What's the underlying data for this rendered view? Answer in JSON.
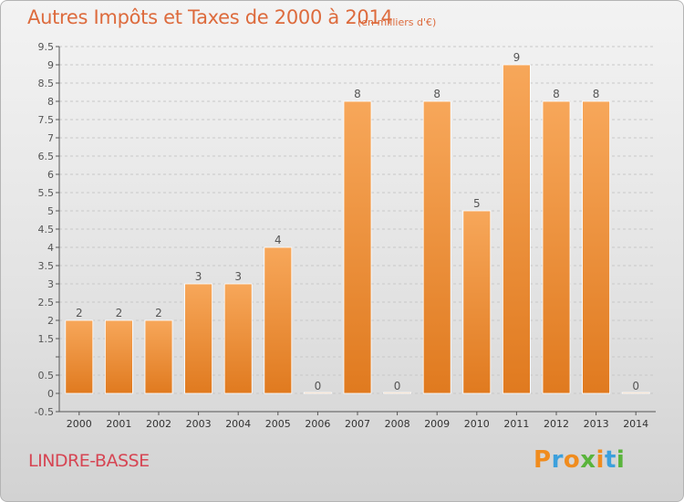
{
  "header": {
    "title": "Autres Impôts et Taxes de 2000 à 2014",
    "unit": "(en milliers d'€)"
  },
  "footer": {
    "location": "LINDRE-BASSE",
    "brand": "Proxiti",
    "brand_colors": [
      "#f08c1e",
      "#3ca0dc",
      "#f08c1e",
      "#5ab43c",
      "#f08c1e",
      "#3ca0dc",
      "#5ab43c"
    ]
  },
  "colors": {
    "title": "#dd6b3d",
    "location": "#d64553",
    "bar_light": "#f7a75a",
    "bar_dark": "#e07a1f",
    "axis": "#555555",
    "grid": "#c8c8c8"
  },
  "chart_data": {
    "type": "bar",
    "categories": [
      "2000",
      "2001",
      "2002",
      "2003",
      "2004",
      "2005",
      "2006",
      "2007",
      "2008",
      "2009",
      "2010",
      "2011",
      "2012",
      "2013",
      "2014"
    ],
    "values": [
      2,
      2,
      2,
      3,
      3,
      4,
      0,
      8,
      0,
      8,
      5,
      9,
      8,
      8,
      0
    ],
    "data_labels": [
      "2",
      "2",
      "2",
      "3",
      "3",
      "4",
      "0",
      "8",
      "0",
      "8",
      "5",
      "9",
      "8",
      "8",
      "0"
    ],
    "y_ticks": [
      -0.5,
      0,
      0.5,
      1,
      1.5,
      2,
      2.5,
      3,
      3.5,
      4,
      4.5,
      5,
      5.5,
      6,
      6.5,
      7,
      7.5,
      8,
      8.5,
      9,
      9.5
    ],
    "y_tick_labels": [
      "-0.5",
      "0",
      "0.5",
      "",
      "1.5",
      "2",
      "2.5",
      "3",
      "3.5",
      "4",
      "4.5",
      "5",
      "5.5",
      "6",
      "6.5",
      "7",
      "7.5",
      "8",
      "8.5",
      "9",
      "9.5"
    ],
    "ylim": [
      -0.5,
      9.5
    ],
    "title": "Autres Impôts et Taxes de 2000 à 2014",
    "xlabel": "",
    "ylabel": "",
    "grid": true,
    "legend": "none"
  }
}
